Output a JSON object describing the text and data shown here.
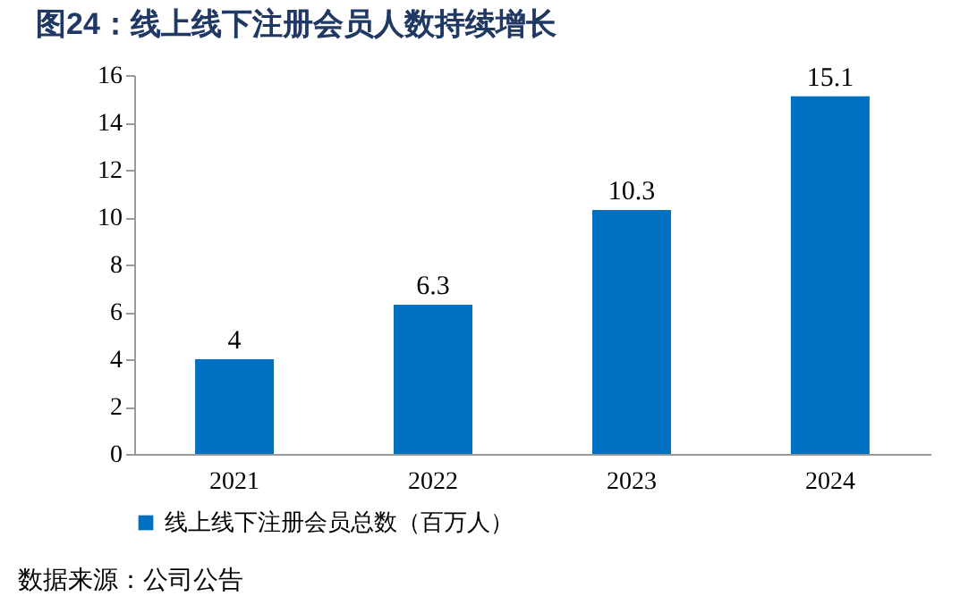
{
  "chart_data": {
    "type": "bar",
    "title": "图24：线上线下注册会员人数持续增长",
    "categories": [
      "2021",
      "2022",
      "2023",
      "2024"
    ],
    "series": [
      {
        "name": "线上线下注册会员总数（百万人）",
        "color": "#0070c0",
        "values": [
          4,
          6.3,
          10.3,
          15.1
        ]
      }
    ],
    "ylim": [
      0,
      16
    ],
    "yticks": [
      0,
      2,
      4,
      6,
      8,
      10,
      12,
      14,
      16
    ],
    "grid": false,
    "legend": "bottom",
    "data_labels": true,
    "annotations": [
      "数据来源：公司公告"
    ]
  }
}
